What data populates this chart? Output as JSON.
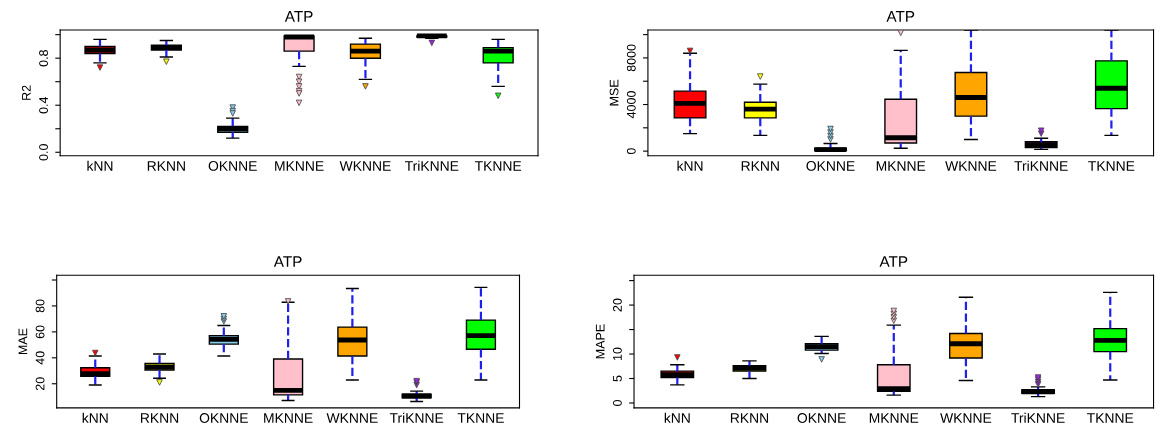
{
  "chart_data": [
    {
      "type": "box",
      "title": "ATP",
      "ylabel": "R2",
      "categories": [
        "kNN",
        "RKNN",
        "OKNNE",
        "MKNNE",
        "WKNNE",
        "TriKNNE",
        "TKNNE"
      ],
      "colors": [
        "#ff0000",
        "#ffff00",
        "#87ceeb",
        "#ffc0cb",
        "#ffa500",
        "#a020f0",
        "#00ff00"
      ],
      "boxes": [
        {
          "low": 0.76,
          "q1": 0.84,
          "median": 0.87,
          "q3": 0.9,
          "high": 0.96,
          "outliers": [
            0.72
          ]
        },
        {
          "low": 0.81,
          "q1": 0.87,
          "median": 0.89,
          "q3": 0.91,
          "high": 0.95,
          "outliers": [
            0.77
          ]
        },
        {
          "low": 0.12,
          "q1": 0.17,
          "median": 0.2,
          "q3": 0.22,
          "high": 0.29,
          "outliers": [
            0.38,
            0.35,
            0.33
          ]
        },
        {
          "low": 0.73,
          "q1": 0.86,
          "median": 0.98,
          "q3": 0.99,
          "high": 0.99,
          "outliers": [
            0.64,
            0.6,
            0.56,
            0.52,
            0.5,
            0.42
          ]
        },
        {
          "low": 0.62,
          "q1": 0.8,
          "median": 0.86,
          "q3": 0.92,
          "high": 0.97,
          "outliers": [
            0.56
          ]
        },
        {
          "low": 0.97,
          "q1": 0.98,
          "median": 0.99,
          "q3": 0.99,
          "high": 1.0,
          "outliers": [
            0.93
          ]
        },
        {
          "low": 0.56,
          "q1": 0.76,
          "median": 0.86,
          "q3": 0.89,
          "high": 0.96,
          "outliers": [
            0.48
          ]
        }
      ],
      "ylim": [
        -0.03,
        1.04
      ],
      "yticks": [
        {
          "value": 0,
          "label": "0.0"
        },
        {
          "value": 0.2,
          "label": null
        },
        0.4,
        {
          "value": 0.6,
          "label": null
        },
        0.8,
        {
          "value": 1.0,
          "label": null
        }
      ],
      "marker": "triangle",
      "line_style": "dashed",
      "grid": false,
      "legend": false
    },
    {
      "type": "box",
      "title": "ATP",
      "ylabel": "MSE",
      "categories": [
        "kNN",
        "RKNN",
        "OKNNE",
        "MKNNE",
        "WKNNE",
        "TriKNNE",
        "TKNNE"
      ],
      "colors": [
        "#ff0000",
        "#ffff00",
        "#87ceeb",
        "#ffc0cb",
        "#ffa500",
        "#a020f0",
        "#00ff00"
      ],
      "boxes": [
        {
          "low": 1500,
          "q1": 2850,
          "median": 4100,
          "q3": 5150,
          "high": 8400,
          "outliers": [
            8600
          ]
        },
        {
          "low": 1350,
          "q1": 2850,
          "median": 3600,
          "q3": 4200,
          "high": 5750,
          "outliers": [
            6400
          ]
        },
        {
          "low": 20,
          "q1": 50,
          "median": 130,
          "q3": 250,
          "high": 650,
          "outliers": [
            1000,
            1300,
            1600,
            1900
          ]
        },
        {
          "low": 250,
          "q1": 700,
          "median": 1150,
          "q3": 4450,
          "high": 8650,
          "outliers": [
            10150
          ]
        },
        {
          "low": 1000,
          "q1": 3000,
          "median": 4600,
          "q3": 6750,
          "high": 10400
        },
        {
          "low": 150,
          "q1": 300,
          "median": 550,
          "q3": 800,
          "high": 1100,
          "outliers": [
            1500,
            1750
          ]
        },
        {
          "low": 1350,
          "q1": 3650,
          "median": 5400,
          "q3": 7750,
          "high": 10400
        }
      ],
      "ylim": [
        -400,
        10400
      ],
      "yticks": [
        0,
        {
          "value": 2000,
          "label": null
        },
        4000,
        {
          "value": 6000,
          "label": null
        },
        8000,
        {
          "value": 10000,
          "label": null
        }
      ],
      "marker": "triangle",
      "line_style": "dashed",
      "grid": false,
      "legend": false
    },
    {
      "type": "box",
      "title": "ATP",
      "ylabel": "MAE",
      "categories": [
        "kNN",
        "RKNN",
        "OKNNE",
        "MKNNE",
        "WKNNE",
        "TriKNNE",
        "TKNNE"
      ],
      "colors": [
        "#ff0000",
        "#ffff00",
        "#87ceeb",
        "#ffc0cb",
        "#ffa500",
        "#a020f0",
        "#00ff00"
      ],
      "boxes": [
        {
          "low": 19,
          "q1": 25.7,
          "median": 27.7,
          "q3": 32.3,
          "high": 41.4,
          "outliers": [
            43.7
          ]
        },
        {
          "low": 24.3,
          "q1": 30.6,
          "median": 32.9,
          "q3": 35.7,
          "high": 42.9,
          "outliers": [
            21
          ]
        },
        {
          "low": 41.4,
          "q1": 50.6,
          "median": 54.3,
          "q3": 57.1,
          "high": 64.9,
          "outliers": [
            68,
            70,
            72
          ]
        },
        {
          "low": 7.1,
          "q1": 11.4,
          "median": 14.9,
          "q3": 39.1,
          "high": 82.9,
          "outliers": [
            83.5
          ]
        },
        {
          "low": 22.9,
          "q1": 41.4,
          "median": 53.7,
          "q3": 63.7,
          "high": 93.4
        },
        {
          "low": 6.3,
          "q1": 9.1,
          "median": 10.6,
          "q3": 12,
          "high": 14.3,
          "outliers": [
            19,
            21,
            22
          ]
        },
        {
          "low": 22.9,
          "q1": 46.6,
          "median": 57.1,
          "q3": 69.1,
          "high": 94.3
        }
      ],
      "ylim": [
        1.4,
        103.7
      ],
      "yticks": [
        20,
        40,
        60,
        80,
        {
          "value": 100,
          "label": null
        }
      ],
      "marker": "triangle",
      "line_style": "dashed",
      "grid": false,
      "legend": false
    },
    {
      "type": "box",
      "title": "ATP",
      "ylabel": "MAPE",
      "categories": [
        "kNN",
        "RKNN",
        "OKNNE",
        "MKNNE",
        "WKNNE",
        "TriKNNE",
        "TKNNE"
      ],
      "colors": [
        "#ff0000",
        "#ffff00",
        "#87ceeb",
        "#ffc0cb",
        "#ffa500",
        "#a020f0",
        "#00ff00"
      ],
      "boxes": [
        {
          "low": 3.7,
          "q1": 5.2,
          "median": 5.8,
          "q3": 6.5,
          "high": 7.8,
          "outliers": [
            9.3
          ]
        },
        {
          "low": 5.0,
          "q1": 6.5,
          "median": 7.1,
          "q3": 7.6,
          "high": 8.6
        },
        {
          "low": 10.1,
          "q1": 10.8,
          "median": 11.5,
          "q3": 12.1,
          "high": 13.6,
          "outliers": [
            8.9
          ]
        },
        {
          "low": 1.6,
          "q1": 2.4,
          "median": 2.9,
          "q3": 7.8,
          "high": 15.9,
          "outliers": [
            16.8,
            17.5,
            18.2,
            18.8
          ]
        },
        {
          "low": 4.6,
          "q1": 9.2,
          "median": 12.1,
          "q3": 14.2,
          "high": 21.6
        },
        {
          "low": 1.3,
          "q1": 2.0,
          "median": 2.3,
          "q3": 2.7,
          "high": 3.3,
          "outliers": [
            3.8,
            4.3,
            4.8,
            5.2
          ]
        },
        {
          "low": 4.7,
          "q1": 10.5,
          "median": 12.8,
          "q3": 15.2,
          "high": 22.6
        }
      ],
      "ylim": [
        -1.0,
        26.1
      ],
      "yticks": [
        0,
        5,
        10,
        {
          "value": 15,
          "label": null
        },
        20,
        {
          "value": 25,
          "label": null
        }
      ],
      "marker": "triangle",
      "line_style": "dashed",
      "grid": false,
      "legend": false
    }
  ]
}
